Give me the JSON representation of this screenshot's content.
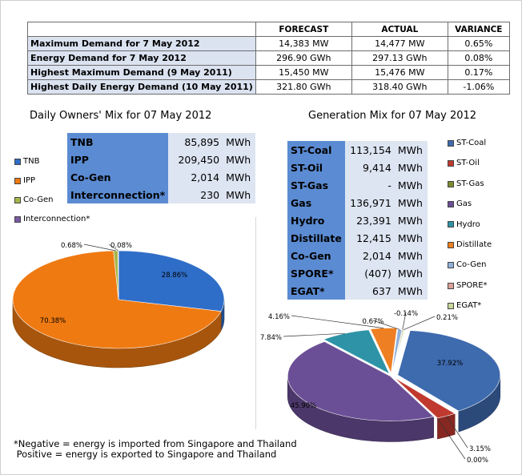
{
  "summary": {
    "headers": {
      "forecast": "FORECAST",
      "actual": "ACTUAL",
      "variance": "VARIANCE"
    },
    "rows": [
      {
        "label": "Maximum Demand for 7 May 2012",
        "forecast": "14,383  MW",
        "actual": "14,477  MW",
        "variance": "0.65%"
      },
      {
        "label": "Energy Demand for 7 May 2012",
        "forecast": "296.90  GWh",
        "actual": "297.13  GWh",
        "variance": "0.08%"
      },
      {
        "label": "Highest Maximum Demand (9 May 2011)",
        "forecast": "15,450  MW",
        "actual": "15,476  MW",
        "variance": "0.17%"
      },
      {
        "label": "Highest Daily Energy Demand (10 May 2011)",
        "forecast": "321.80  GWh",
        "actual": "318.40  GWh",
        "variance": "-1.06%"
      }
    ]
  },
  "owners_mix": {
    "title": "Daily Owners' Mix for 07 May 2012",
    "rows": [
      {
        "name": "TNB",
        "value": "85,895",
        "unit": "MWh"
      },
      {
        "name": "IPP",
        "value": "209,450",
        "unit": "MWh"
      },
      {
        "name": "Co-Gen",
        "value": "2,014",
        "unit": "MWh"
      },
      {
        "name": "Interconnection*",
        "value": "230",
        "unit": "MWh"
      }
    ]
  },
  "generation_mix": {
    "title": "Generation Mix for 07 May 2012",
    "rows": [
      {
        "name": "ST-Coal",
        "value": "113,154",
        "unit": "MWh"
      },
      {
        "name": "ST-Oil",
        "value": "9,414",
        "unit": "MWh"
      },
      {
        "name": "ST-Gas",
        "value": "-",
        "unit": "MWh"
      },
      {
        "name": "Gas",
        "value": "136,971",
        "unit": "MWh"
      },
      {
        "name": "Hydro",
        "value": "23,391",
        "unit": "MWh"
      },
      {
        "name": "Distillate",
        "value": "12,415",
        "unit": "MWh"
      },
      {
        "name": "Co-Gen",
        "value": "2,014",
        "unit": "MWh"
      },
      {
        "name": "SPORE*",
        "value": "(407)",
        "unit": "MWh"
      },
      {
        "name": "EGAT*",
        "value": "637",
        "unit": "MWh"
      }
    ]
  },
  "footnote": {
    "line1": "*Negative = energy is imported from Singapore and Thailand",
    "line2": " Positive = energy is exported to Singapore and Thailand"
  },
  "chart_data": [
    {
      "type": "pie",
      "title": "Daily Owners' Mix for 07 May 2012",
      "legend_position": "top-left",
      "categories": [
        "TNB",
        "IPP",
        "Co-Gen",
        "Interconnection*"
      ],
      "values": [
        28.86,
        70.38,
        0.68,
        0.08
      ],
      "labels": [
        "28.86%",
        "70.38%",
        "0.68%",
        "0.08%"
      ],
      "colors": [
        "#2f6ec8",
        "#ef7a12",
        "#a7b64a",
        "#7a5aa3"
      ]
    },
    {
      "type": "pie",
      "title": "Generation Mix for 07 May 2012",
      "legend_position": "right",
      "categories": [
        "ST-Coal",
        "ST-Oil",
        "ST-Gas",
        "Gas",
        "Hydro",
        "Distillate",
        "Co-Gen",
        "SPORE*",
        "EGAT*"
      ],
      "values": [
        37.92,
        3.15,
        0.0,
        45.9,
        7.84,
        4.16,
        0.67,
        -0.14,
        0.21
      ],
      "labels": [
        "37.92%",
        "3.15%",
        "0.00%",
        "45.90%",
        "7.84%",
        "4.16%",
        "0.67%",
        "-0.14%",
        "0.21%"
      ],
      "colors": [
        "#3e6aae",
        "#c0392f",
        "#7a8c2e",
        "#6b4f96",
        "#2e93a7",
        "#ee7f22",
        "#8fb0d9",
        "#dba097",
        "#c7d69a"
      ]
    }
  ]
}
